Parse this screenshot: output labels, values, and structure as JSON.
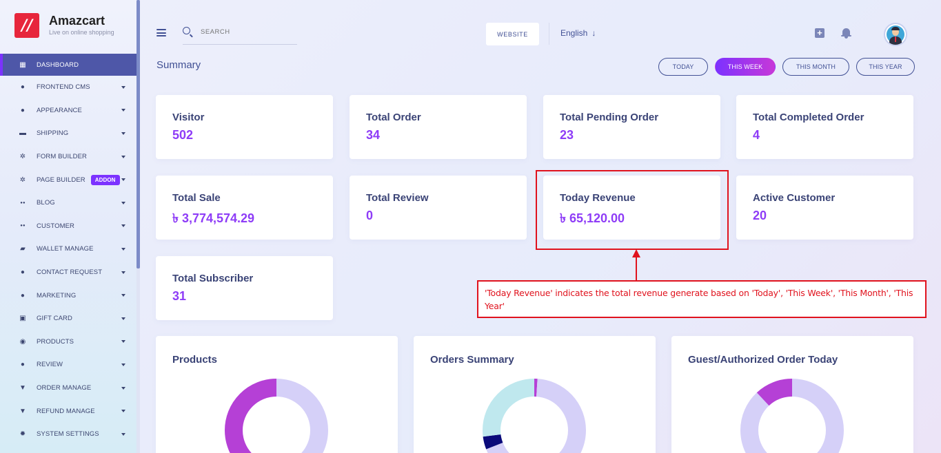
{
  "brand": {
    "name": "Amazcart",
    "tagline": "Live on online shopping",
    "logo_text": "//"
  },
  "sidebar": {
    "items": [
      {
        "label": "DASHBOARD",
        "icon": "grid-icon",
        "active": true
      },
      {
        "label": "FRONTEND CMS",
        "icon": "user-icon"
      },
      {
        "label": "APPEARANCE",
        "icon": "user-icon"
      },
      {
        "label": "SHIPPING",
        "icon": "money-icon"
      },
      {
        "label": "FORM BUILDER",
        "icon": "cogs-icon"
      },
      {
        "label": "PAGE BUILDER",
        "icon": "cogs-icon",
        "badge": "ADDON"
      },
      {
        "label": "BLOG",
        "icon": "users-icon"
      },
      {
        "label": "CUSTOMER",
        "icon": "users-icon"
      },
      {
        "label": "WALLET MANAGE",
        "icon": "wallet-icon"
      },
      {
        "label": "CONTACT REQUEST",
        "icon": "user-icon"
      },
      {
        "label": "MARKETING",
        "icon": "user-icon"
      },
      {
        "label": "GIFT CARD",
        "icon": "gift-icon"
      },
      {
        "label": "PRODUCTS",
        "icon": "product-icon"
      },
      {
        "label": "REVIEW",
        "icon": "user-icon"
      },
      {
        "label": "ORDER MANAGE",
        "icon": "cart-icon"
      },
      {
        "label": "REFUND MANAGE",
        "icon": "cart-icon"
      },
      {
        "label": "SYSTEM SETTINGS",
        "icon": "gear-icon"
      }
    ]
  },
  "topbar": {
    "search_placeholder": "SEARCH",
    "website_label": "WEBSITE",
    "language": "English",
    "language_arrow": "↓"
  },
  "summary": {
    "title": "Summary",
    "periods": [
      {
        "label": "TODAY",
        "active": false
      },
      {
        "label": "THIS WEEK",
        "active": true
      },
      {
        "label": "THIS MONTH",
        "active": false
      },
      {
        "label": "THIS YEAR",
        "active": false
      }
    ]
  },
  "stats": [
    {
      "label": "Visitor",
      "value": "502"
    },
    {
      "label": "Total Order",
      "value": "34"
    },
    {
      "label": "Total Pending Order",
      "value": "23"
    },
    {
      "label": "Total Completed Order",
      "value": "4"
    },
    {
      "label": "Total Sale",
      "value": "৳ 3,774,574.29"
    },
    {
      "label": "Total Review",
      "value": "0"
    },
    {
      "label": "Today Revenue",
      "value": "৳ 65,120.00"
    },
    {
      "label": "Active Customer",
      "value": "20"
    },
    {
      "label": "Total Subscriber",
      "value": "31"
    }
  ],
  "callout": {
    "text": "'Today Revenue' indicates the total revenue generate based on 'Today', 'This Week', 'This Month', 'This Year'"
  },
  "charts": [
    {
      "title": "Products",
      "colors": {
        "primary": "#b540d6",
        "secondary": "#d5d0f8"
      }
    },
    {
      "title": "Orders Summary",
      "colors": {
        "primary": "#d5d0f8",
        "a": "#b540d6",
        "b": "#0a0a7a",
        "c": "#bfe8ee"
      }
    },
    {
      "title": "Guest/Authorized Order Today",
      "colors": {
        "primary": "#d5d0f8",
        "secondary": "#b540d6"
      }
    }
  ],
  "chart_data": [
    {
      "type": "pie",
      "title": "Products",
      "slices": [
        {
          "value": 50,
          "color": "#d5d0f8"
        },
        {
          "value": 50,
          "color": "#b540d6"
        }
      ]
    },
    {
      "type": "pie",
      "title": "Orders Summary",
      "slices": [
        {
          "value": 1,
          "color": "#b540d6"
        },
        {
          "value": 68,
          "color": "#d5d0f8"
        },
        {
          "value": 4,
          "color": "#0a0a7a"
        },
        {
          "value": 27,
          "color": "#bfe8ee"
        }
      ]
    },
    {
      "type": "pie",
      "title": "Guest/Authorized Order Today",
      "slices": [
        {
          "value": 88,
          "color": "#d5d0f8"
        },
        {
          "value": 12,
          "color": "#b540d6"
        }
      ]
    }
  ]
}
